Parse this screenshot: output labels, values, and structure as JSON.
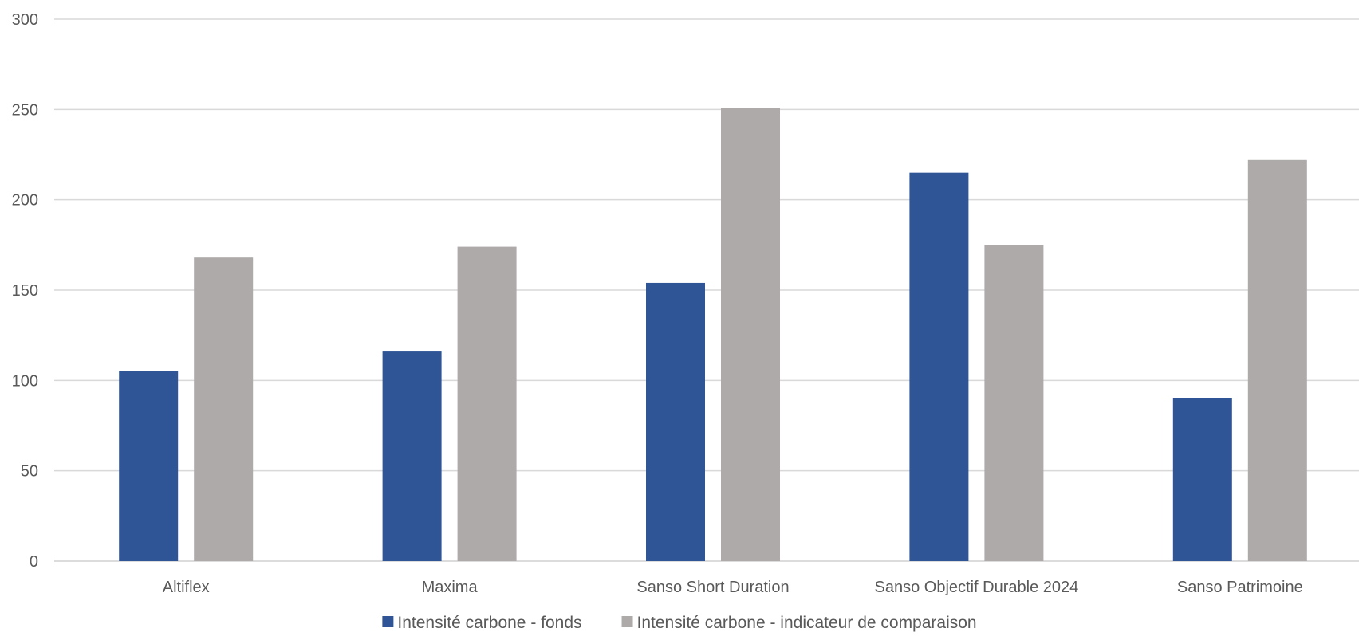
{
  "chart_data": {
    "type": "bar",
    "title": "",
    "xlabel": "",
    "ylabel": "",
    "ylim": [
      0,
      300
    ],
    "y_ticks": [
      0,
      50,
      100,
      150,
      200,
      250,
      300
    ],
    "grid": true,
    "legend_position": "bottom",
    "categories": [
      "Altiflex",
      "Maxima",
      "Sanso Short Duration",
      "Sanso Objectif Durable 2024",
      "Sanso Patrimoine"
    ],
    "series": [
      {
        "name": "Intensité carbone - fonds",
        "color": "#2F5597",
        "values": [
          105,
          116,
          154,
          215,
          90
        ]
      },
      {
        "name": "Intensité carbone - indicateur de comparaison",
        "color": "#AEAAAA",
        "values": [
          168,
          174,
          251,
          175,
          222
        ]
      }
    ]
  }
}
